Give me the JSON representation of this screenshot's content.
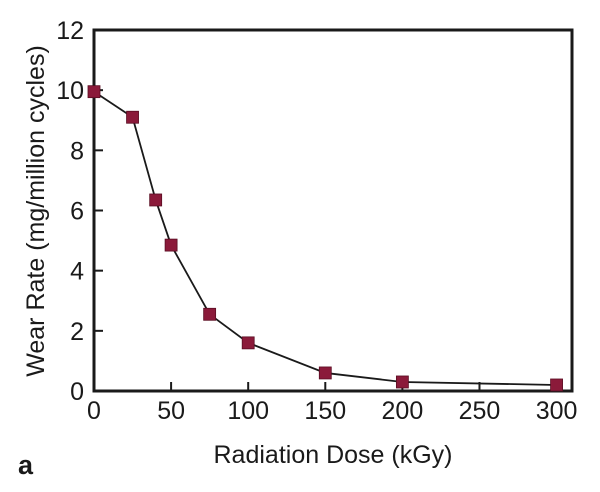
{
  "chart_data": {
    "type": "line",
    "title": "",
    "xlabel": "Radiation Dose (kGy)",
    "ylabel": "Wear Rate (mg/million cycles)",
    "panel_label": "a",
    "xlim": [
      0,
      310
    ],
    "ylim": [
      0,
      12
    ],
    "xticks": [
      0,
      50,
      100,
      150,
      200,
      250,
      300
    ],
    "yticks": [
      0,
      2,
      4,
      6,
      8,
      10,
      12
    ],
    "grid": false,
    "legend": "none",
    "marker": "square",
    "marker_color": "#8b1a3a",
    "line_color": "#1a1a1a",
    "series": [
      {
        "x": [
          0,
          25,
          40,
          50,
          75,
          100,
          150,
          200,
          300
        ],
        "y": [
          9.95,
          9.1,
          6.35,
          4.85,
          2.55,
          1.6,
          0.6,
          0.3,
          0.2
        ]
      }
    ]
  }
}
